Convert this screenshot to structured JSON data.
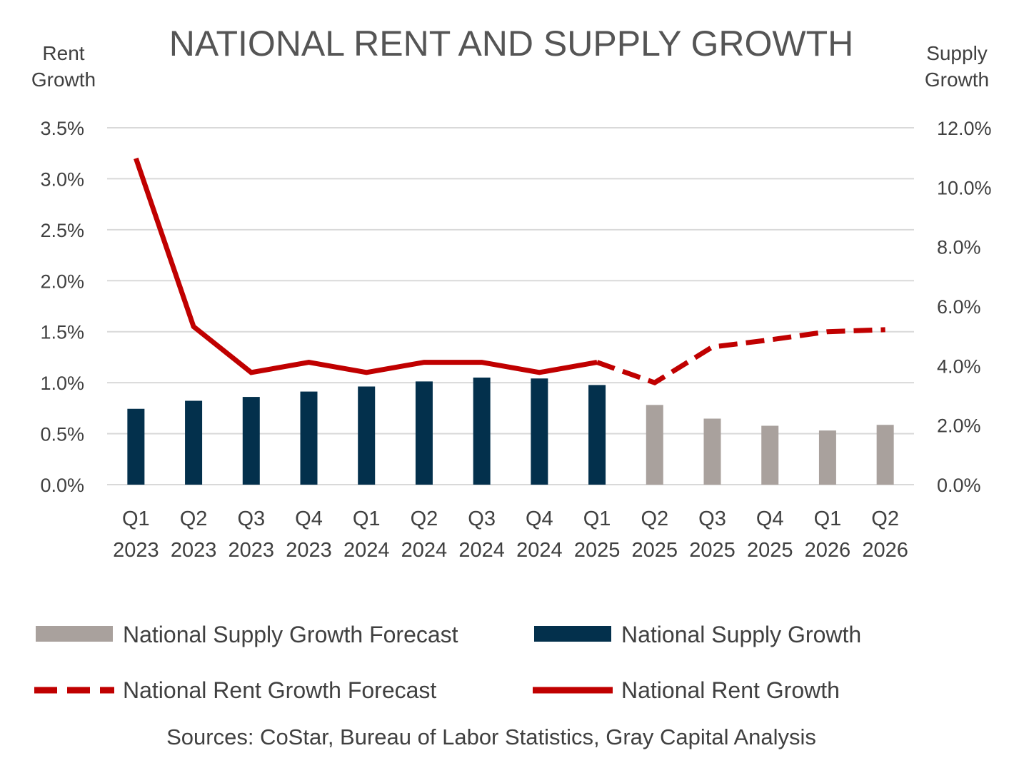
{
  "chart_data": {
    "type": "bar",
    "title": "NATIONAL RENT AND SUPPLY GROWTH",
    "left_axis_title": [
      "Rent",
      "Growth"
    ],
    "right_axis_title": [
      "Supply",
      "Growth"
    ],
    "categories": [
      [
        "Q1",
        "2023"
      ],
      [
        "Q2",
        "2023"
      ],
      [
        "Q3",
        "2023"
      ],
      [
        "Q4",
        "2023"
      ],
      [
        "Q1",
        "2024"
      ],
      [
        "Q2",
        "2024"
      ],
      [
        "Q3",
        "2024"
      ],
      [
        "Q4",
        "2024"
      ],
      [
        "Q1",
        "2025"
      ],
      [
        "Q2",
        "2025"
      ],
      [
        "Q3",
        "2025"
      ],
      [
        "Q4",
        "2025"
      ],
      [
        "Q1",
        "2026"
      ],
      [
        "Q2",
        "2026"
      ]
    ],
    "left_ylim": [
      0,
      3.5
    ],
    "left_ticks": [
      "0.0%",
      "0.5%",
      "1.0%",
      "1.5%",
      "2.0%",
      "2.5%",
      "3.0%",
      "3.5%"
    ],
    "right_ylim": [
      0,
      12
    ],
    "right_ticks": [
      "0.0%",
      "2.0%",
      "4.0%",
      "6.0%",
      "8.0%",
      "10.0%",
      "12.0%"
    ],
    "grid": true,
    "series": [
      {
        "name": "National Supply Growth",
        "type": "bar",
        "axis": "right",
        "color": "#03304c",
        "values": [
          2.55,
          2.82,
          2.95,
          3.13,
          3.3,
          3.47,
          3.6,
          3.57,
          3.35,
          null,
          null,
          null,
          null,
          null
        ]
      },
      {
        "name": "National Supply Growth Forecast",
        "type": "bar",
        "axis": "right",
        "color": "#a9a19d",
        "values": [
          null,
          null,
          null,
          null,
          null,
          null,
          null,
          null,
          null,
          2.68,
          2.22,
          1.98,
          1.82,
          2.01
        ]
      },
      {
        "name": "National Rent Growth",
        "type": "line",
        "axis": "left",
        "color": "#c00000",
        "style": "solid",
        "values": [
          3.2,
          1.55,
          1.1,
          1.2,
          1.1,
          1.2,
          1.2,
          1.1,
          1.2,
          null,
          null,
          null,
          null,
          null
        ]
      },
      {
        "name": "National Rent Growth Forecast",
        "type": "line",
        "axis": "left",
        "color": "#c00000",
        "style": "dashed",
        "values": [
          null,
          null,
          null,
          null,
          null,
          null,
          null,
          null,
          1.2,
          1.0,
          1.35,
          1.42,
          1.5,
          1.52
        ]
      }
    ],
    "legend": [
      {
        "label": "National Supply Growth Forecast",
        "kind": "bar",
        "color": "#a9a19d"
      },
      {
        "label": "National Supply Growth",
        "kind": "bar",
        "color": "#03304c"
      },
      {
        "label": "National Rent Growth Forecast",
        "kind": "dashed",
        "color": "#c00000"
      },
      {
        "label": "National Rent Growth",
        "kind": "solid",
        "color": "#c00000"
      }
    ],
    "source": "Sources: CoStar, Bureau of Labor Statistics, Gray Capital Analysis"
  }
}
